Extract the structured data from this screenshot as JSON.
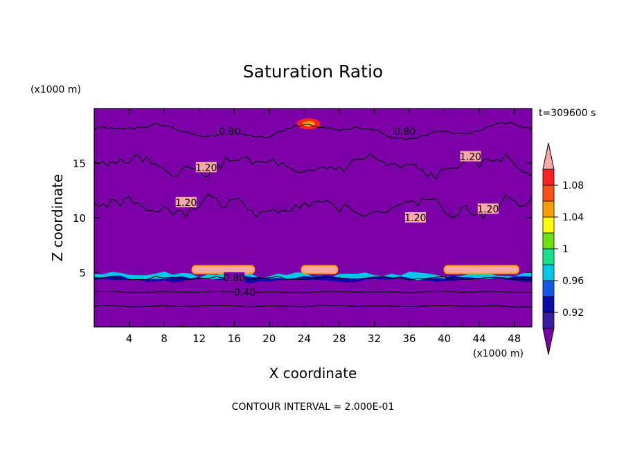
{
  "chart_data": {
    "type": "heatmap",
    "title": "Saturation Ratio",
    "xlabel": "X coordinate",
    "ylabel": "Z coordinate",
    "x_unit": "(x1000 m)",
    "z_unit": "(x1000 m)",
    "time_label": "t=309600 s",
    "footer": "CONTOUR INTERVAL = 2.000E-01",
    "xlim": [
      0,
      50
    ],
    "ylim": [
      0,
      20
    ],
    "x_ticks": [
      "4",
      "8",
      "12",
      "16",
      "20",
      "24",
      "28",
      "32",
      "36",
      "40",
      "44",
      "48"
    ],
    "y_ticks": [
      "5",
      "10",
      "15"
    ],
    "colorbar": {
      "levels": [
        0.9,
        0.92,
        0.94,
        0.96,
        0.98,
        1.0,
        1.02,
        1.04,
        1.06,
        1.08,
        1.1
      ],
      "labels": [
        "0.92",
        "0.96",
        "1",
        "1.04",
        "1.08"
      ],
      "colors": [
        "#7b00a8",
        "#3a1aa0",
        "#0a0aa6",
        "#0f5ae6",
        "#00c8e6",
        "#14e08a",
        "#6ee00e",
        "#ffff00",
        "#ffa000",
        "#ff5014",
        "#ff2020",
        "#f7a8a8"
      ]
    },
    "contour_labels": [
      {
        "text": "0.80",
        "x": 15.5,
        "z": 17.9
      },
      {
        "text": "0.80",
        "x": 35.5,
        "z": 17.9
      },
      {
        "text": "1.20",
        "x": 12.8,
        "z": 14.6
      },
      {
        "text": "1.20",
        "x": 43.0,
        "z": 15.6
      },
      {
        "text": "1.20",
        "x": 10.5,
        "z": 11.4
      },
      {
        "text": "1.20",
        "x": 36.7,
        "z": 10.0
      },
      {
        "text": "1.20",
        "x": 45.0,
        "z": 10.8
      },
      {
        "text": "0.80",
        "x": 16.0,
        "z": 4.5
      },
      {
        "text": "0.40",
        "x": 17.2,
        "z": 3.2
      }
    ]
  }
}
